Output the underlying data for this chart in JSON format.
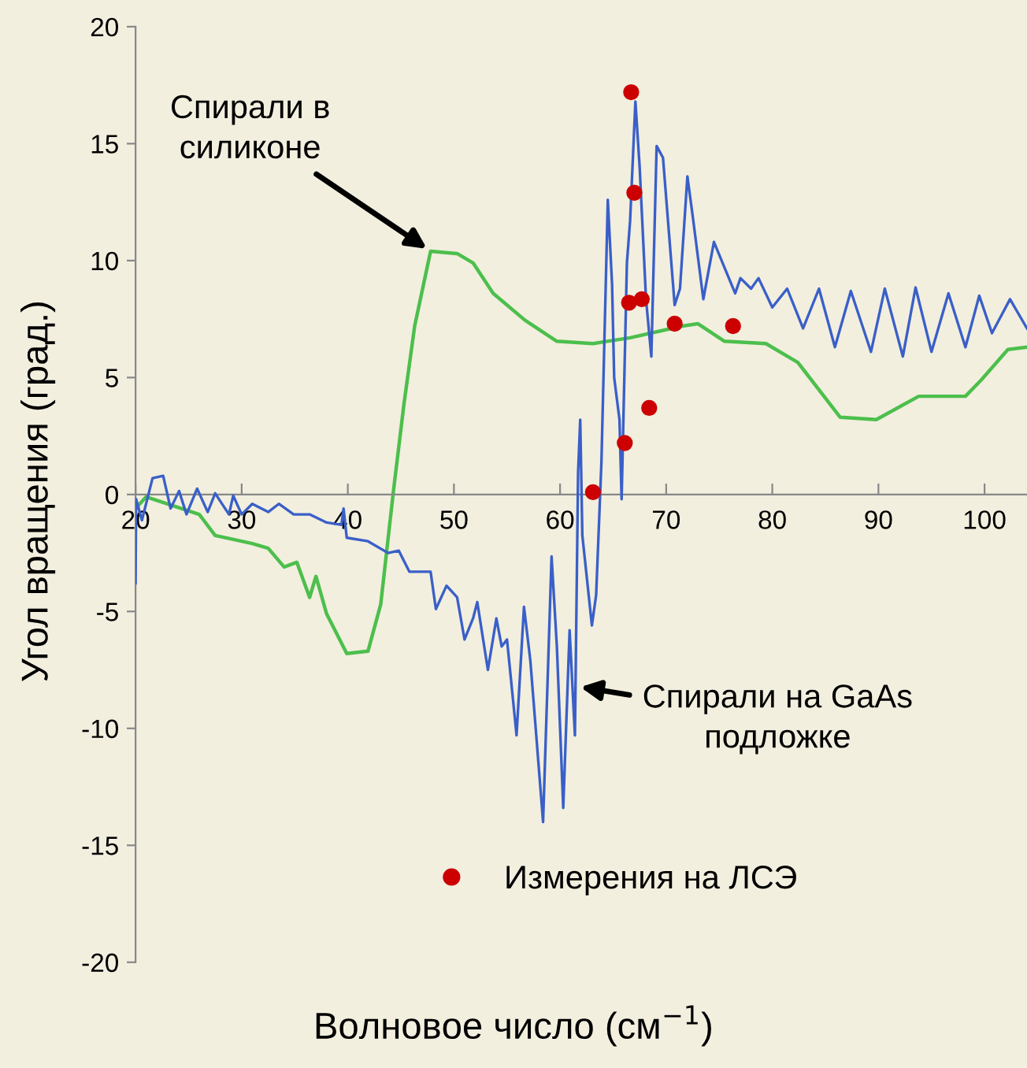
{
  "chart_data": {
    "type": "line",
    "xlabel": "Волновое число (см$^{−1}$)",
    "ylabel": "Угол вращения (град.)",
    "xlim": [
      20,
      104
    ],
    "xticks": [
      20,
      30,
      40,
      50,
      60,
      70,
      80,
      90,
      100
    ],
    "ylim": [
      -20,
      20
    ],
    "yticks": [
      -20,
      -15,
      -10,
      -5,
      0,
      5,
      10,
      15,
      20
    ],
    "grid": false,
    "legend": "bottom",
    "marker": "none",
    "line_style": "solid",
    "series": [
      {
        "color": "#4cbf4c",
        "x": [
          20,
          21,
          26,
          27.5,
          31,
          32.5,
          34,
          35.2,
          36.4,
          37,
          38,
          39.9,
          41.9,
          43.1,
          44.3,
          45.3,
          46.3,
          47.8,
          50.3,
          51.8,
          53.7,
          56.7,
          59.7,
          63.1,
          66.6,
          71.5,
          73.0,
          75.5,
          79.4,
          82.4,
          86.4,
          89.8,
          93.8,
          98.2,
          99.7,
          102.2,
          104
        ],
        "values": [
          -0.6,
          -0.1,
          -0.85,
          -1.75,
          -2.1,
          -2.3,
          -3.1,
          -2.9,
          -4.4,
          -3.5,
          -5.1,
          -6.8,
          -6.7,
          -4.7,
          0.15,
          3.9,
          7.2,
          10.4,
          10.3,
          9.9,
          8.6,
          7.45,
          6.55,
          6.45,
          6.7,
          7.2,
          7.3,
          6.55,
          6.45,
          5.65,
          3.3,
          3.2,
          4.2,
          4.2,
          4.9,
          6.2,
          6.3
        ]
      },
      {
        "color": "#3a5fc8",
        "x": [
          20.0,
          20.05,
          20.6,
          21.6,
          22.6,
          23.3,
          24.1,
          24.8,
          25.8,
          26.8,
          27.5,
          28.8,
          29.2,
          30,
          31,
          32.5,
          33.5,
          34.9,
          36.4,
          38.0,
          39.4,
          39.6,
          39.9,
          41.9,
          43.8,
          44.8,
          45.8,
          47.8,
          48.3,
          49.3,
          50.3,
          51.0,
          51.8,
          52.2,
          53.2,
          54.0,
          54.5,
          55.0,
          55.9,
          56.6,
          57.2,
          58.4,
          59.2,
          59.7,
          60.3,
          60.9,
          61.4,
          61.7,
          61.9,
          62.1,
          63.0,
          63.4,
          63.9,
          64.5,
          64.9,
          65.1,
          65.6,
          65.8,
          66.3,
          66.6,
          67.1,
          67.5,
          68.1,
          68.6,
          69.1,
          69.7,
          70.8,
          71.3,
          72.0,
          72.5,
          73.5,
          74.5,
          75.5,
          76.5,
          77.0,
          78.0,
          78.7,
          80.0,
          81.4,
          82.9,
          84.4,
          85.9,
          87.4,
          89.3,
          90.6,
          92.3,
          93.5,
          95.0,
          96.6,
          98.2,
          99.5,
          100.7,
          102.4,
          104
        ],
        "values": [
          -3.8,
          -0.2,
          -1.1,
          0.7,
          0.8,
          -0.6,
          0.15,
          -0.85,
          0.25,
          -0.75,
          0.05,
          -0.85,
          -0.05,
          -0.85,
          -0.4,
          -0.75,
          -0.4,
          -0.85,
          -0.85,
          -1.2,
          -1.3,
          -0.6,
          -1.85,
          -2.0,
          -2.5,
          -2.4,
          -3.3,
          -3.3,
          -4.9,
          -3.9,
          -4.4,
          -6.2,
          -5.3,
          -4.6,
          -7.5,
          -5.3,
          -6.5,
          -6.2,
          -10.3,
          -4.8,
          -7.1,
          -14.0,
          -2.65,
          -6.5,
          -13.4,
          -5.8,
          -10.3,
          0.95,
          3.2,
          -1.75,
          -5.6,
          -4.3,
          1.4,
          12.6,
          9.0,
          5.0,
          3.2,
          -0.2,
          9.9,
          11.7,
          16.8,
          14.0,
          8.35,
          5.9,
          14.9,
          14.4,
          8.1,
          8.8,
          13.6,
          11.9,
          8.35,
          10.8,
          9.7,
          8.6,
          9.25,
          8.8,
          9.25,
          8.0,
          8.8,
          7.1,
          8.8,
          6.3,
          8.7,
          6.1,
          8.8,
          5.9,
          8.85,
          6.1,
          8.6,
          6.3,
          8.5,
          6.9,
          8.35,
          7.1
        ]
      },
      {
        "type": "scatter",
        "name": "Измерения на ЛСЭ",
        "color": "#cc0000",
        "marker": "circle",
        "x": [
          66.7,
          67.0,
          66.5,
          67.7,
          70.8,
          76.3,
          68.4,
          66.1,
          63.1
        ],
        "values": [
          17.2,
          12.9,
          8.2,
          8.35,
          7.3,
          7.2,
          3.7,
          2.2,
          0.1
        ]
      }
    ],
    "annotations": [
      {
        "text": "Спирали в\nсиликоне",
        "x": 47.8,
        "y": 10.4
      },
      {
        "text": "Спирали на GaAs\nподложке",
        "x": 61.5,
        "y": -8.2
      }
    ]
  }
}
